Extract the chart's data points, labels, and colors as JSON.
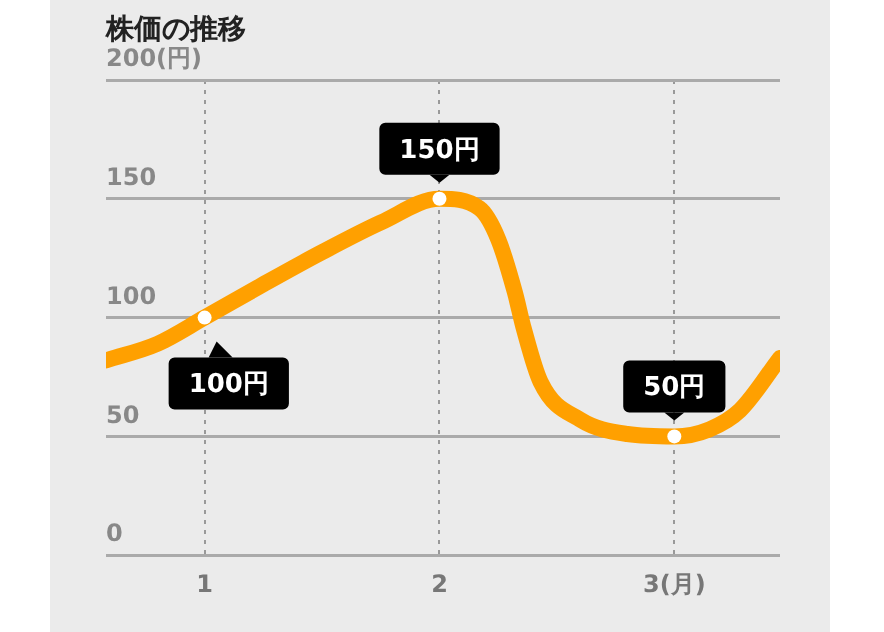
{
  "chart_data": {
    "type": "line",
    "title": "株価の推移",
    "x": [
      0.58,
      0.8,
      1,
      1.25,
      1.49,
      1.75,
      2,
      2.17,
      2.25,
      2.32,
      2.36,
      2.43,
      2.6,
      2.8,
      3,
      3.15,
      3.28,
      3.45
    ],
    "series": [
      {
        "color": "#ffa000",
        "marker": "none",
        "values": [
          82,
          89,
          100,
          114,
          127,
          140,
          150,
          146,
          133,
          111,
          95,
          73,
          57,
          51,
          50,
          53,
          61,
          83
        ]
      },
      {
        "type": "scatter",
        "color": "#ffffff",
        "marker": "circle",
        "x": [
          1,
          2,
          3
        ],
        "values": [
          100,
          150,
          50
        ],
        "value_labels": [
          "100円",
          "150円",
          "50円"
        ]
      }
    ],
    "xlim": [
      0.58,
      3.45
    ],
    "xticks": [
      1,
      2,
      {
        "value": 3,
        "label": "3(月)"
      }
    ],
    "ylim": [
      0,
      200
    ],
    "yticks": [
      0,
      50,
      100,
      150,
      {
        "value": 200,
        "label": "200(円)"
      }
    ],
    "grid": true,
    "legend": false
  }
}
